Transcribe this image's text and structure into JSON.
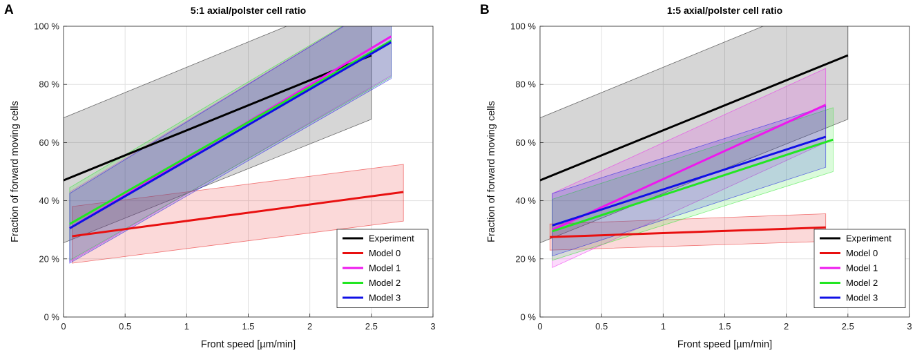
{
  "chart_data": [
    {
      "panel_label": "A",
      "type": "line",
      "title": "5:1 axial/polster cell ratio",
      "xlabel": "Front speed [µm/min]",
      "ylabel": "Fraction of forward moving cells",
      "xlim": [
        0,
        3
      ],
      "ylim": [
        0,
        100
      ],
      "xticks": [
        0,
        0.5,
        1,
        1.5,
        2,
        2.5,
        3
      ],
      "xtick_labels": [
        "0",
        "0.5",
        "1",
        "1.5",
        "2",
        "2.5",
        "3"
      ],
      "yticks": [
        0,
        20,
        40,
        60,
        80,
        100
      ],
      "ytick_labels": [
        "0 %",
        "20 %",
        "40 %",
        "60 %",
        "80 %",
        "100 %"
      ],
      "grid": true,
      "legend_position": "bottom-right",
      "series": [
        {
          "name": "Experiment",
          "color": "#000000",
          "x": [
            0,
            2.5
          ],
          "y": [
            47,
            90
          ],
          "band": {
            "x": [
              0,
              2.5
            ],
            "lower": [
              25.5,
              68
            ],
            "upper": [
              68.5,
              112
            ]
          }
        },
        {
          "name": "Model 0",
          "color": "#e81010",
          "x": [
            0.07,
            2.76
          ],
          "y": [
            27.8,
            43
          ],
          "band": {
            "x": [
              0.07,
              2.76
            ],
            "lower": [
              18.5,
              33
            ],
            "upper": [
              38,
              52.5
            ]
          }
        },
        {
          "name": "Model 1",
          "color": "#ee18ee",
          "x": [
            0.05,
            2.66
          ],
          "y": [
            30.5,
            96.5
          ],
          "band": {
            "x": [
              0.05,
              2.66
            ],
            "lower": [
              19,
              83
            ],
            "upper": [
              43,
              110
            ]
          }
        },
        {
          "name": "Model 2",
          "color": "#22e622",
          "x": [
            0.05,
            2.66
          ],
          "y": [
            32,
            95
          ],
          "band": {
            "x": [
              0.05,
              2.66
            ],
            "lower": [
              19.5,
              82.5
            ],
            "upper": [
              44.5,
              110
            ]
          }
        },
        {
          "name": "Model 3",
          "color": "#1010e6",
          "x": [
            0.05,
            2.66
          ],
          "y": [
            30.5,
            94.5
          ],
          "band": {
            "x": [
              0.05,
              2.66
            ],
            "lower": [
              18.5,
              82
            ],
            "upper": [
              42.5,
              110
            ]
          }
        }
      ]
    },
    {
      "panel_label": "B",
      "type": "line",
      "title": "1:5 axial/polster cell ratio",
      "xlabel": "Front speed [µm/min]",
      "ylabel": "Fraction of forward moving cells",
      "xlim": [
        0,
        3
      ],
      "ylim": [
        0,
        100
      ],
      "xticks": [
        0,
        0.5,
        1,
        1.5,
        2,
        2.5,
        3
      ],
      "xtick_labels": [
        "0",
        "0.5",
        "1",
        "1.5",
        "2",
        "2.5",
        "3"
      ],
      "yticks": [
        0,
        20,
        40,
        60,
        80,
        100
      ],
      "ytick_labels": [
        "0 %",
        "20 %",
        "40 %",
        "60 %",
        "80 %",
        "100 %"
      ],
      "grid": true,
      "legend_position": "bottom-right",
      "series": [
        {
          "name": "Experiment",
          "color": "#000000",
          "x": [
            0,
            2.5
          ],
          "y": [
            47,
            90
          ],
          "band": {
            "x": [
              0,
              2.5
            ],
            "lower": [
              25.5,
              68
            ],
            "upper": [
              68.5,
              112
            ]
          }
        },
        {
          "name": "Model 0",
          "color": "#e81010",
          "x": [
            0.08,
            2.32
          ],
          "y": [
            27.5,
            30.8
          ],
          "band": {
            "x": [
              0.08,
              2.32
            ],
            "lower": [
              23,
              26
            ],
            "upper": [
              32,
              35.5
            ]
          }
        },
        {
          "name": "Model 1",
          "color": "#ee18ee",
          "x": [
            0.1,
            2.32
          ],
          "y": [
            30,
            73
          ],
          "band": {
            "x": [
              0.1,
              2.32
            ],
            "lower": [
              17,
              60
            ],
            "upper": [
              42.5,
              85.5
            ]
          }
        },
        {
          "name": "Model 2",
          "color": "#22e622",
          "x": [
            0.1,
            2.38
          ],
          "y": [
            29.5,
            61
          ],
          "band": {
            "x": [
              0.1,
              2.38
            ],
            "lower": [
              19.5,
              50
            ],
            "upper": [
              40.5,
              72
            ]
          }
        },
        {
          "name": "Model 3",
          "color": "#1010e6",
          "x": [
            0.1,
            2.32
          ],
          "y": [
            31.5,
            62
          ],
          "band": {
            "x": [
              0.1,
              2.32
            ],
            "lower": [
              21,
              51.5
            ],
            "upper": [
              42.5,
              72.5
            ]
          }
        }
      ]
    }
  ]
}
